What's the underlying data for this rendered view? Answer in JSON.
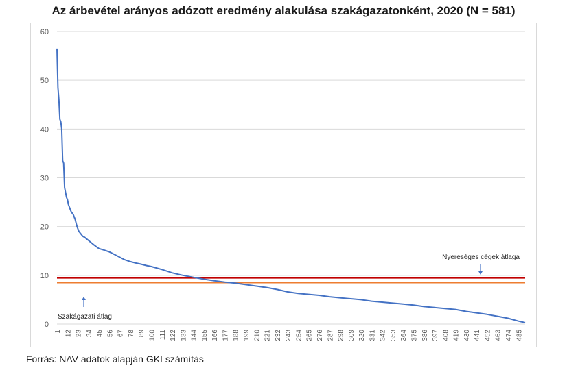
{
  "title": "Az árbevétel arányos adózott eredmény alakulása szakágazatonként, 2020 (N = 581)",
  "source": "Forrás: NAV adatok alapján GKI számítás",
  "colors": {
    "line": "#4472C4",
    "profitable": "#C00000",
    "sector": "#ED7D31",
    "grid": "#d9d9d9"
  },
  "chart_data": {
    "type": "line",
    "title": "Az árbevétel arányos adózott eredmény alakulása szakágazatonként, 2020 (N = 581)",
    "xlabel": "",
    "ylabel": "",
    "ylim": [
      0,
      60
    ],
    "yticks": [
      0,
      10,
      20,
      30,
      40,
      50,
      60
    ],
    "xlim": [
      1,
      492
    ],
    "xticks": [
      1,
      12,
      23,
      34,
      45,
      56,
      67,
      78,
      89,
      100,
      111,
      122,
      133,
      144,
      155,
      166,
      177,
      188,
      199,
      210,
      221,
      232,
      243,
      254,
      265,
      276,
      287,
      298,
      309,
      320,
      331,
      342,
      353,
      364,
      375,
      386,
      397,
      408,
      419,
      430,
      441,
      452,
      463,
      474,
      485
    ],
    "grid": "horizontal",
    "series": [
      {
        "x": [
          1,
          2,
          3,
          4,
          5,
          6,
          7,
          8,
          9,
          10,
          11,
          12,
          13,
          14,
          15,
          16,
          18,
          20,
          22,
          24,
          26,
          28,
          30,
          35,
          40,
          45,
          50,
          56,
          62,
          67,
          72,
          78,
          84,
          89,
          95,
          100,
          111,
          122,
          133,
          144,
          155,
          166,
          177,
          188,
          199,
          210,
          221,
          232,
          243,
          254,
          265,
          276,
          287,
          298,
          309,
          320,
          331,
          342,
          353,
          364,
          375,
          386,
          397,
          408,
          419,
          430,
          441,
          452,
          463,
          474,
          485,
          492
        ],
        "y": [
          56.5,
          48.5,
          46,
          42,
          41.5,
          40,
          33.5,
          33,
          28,
          27,
          26,
          25.5,
          24.5,
          24,
          23.5,
          23,
          22.5,
          21.5,
          20,
          19,
          18.5,
          18,
          17.8,
          17,
          16.2,
          15.5,
          15.2,
          14.8,
          14.2,
          13.7,
          13.2,
          12.8,
          12.5,
          12.3,
          12,
          11.8,
          11.2,
          10.5,
          10,
          9.6,
          9.2,
          8.9,
          8.6,
          8.4,
          8.1,
          7.8,
          7.5,
          7.1,
          6.6,
          6.3,
          6.1,
          5.9,
          5.6,
          5.4,
          5.2,
          5,
          4.7,
          4.5,
          4.3,
          4.1,
          3.9,
          3.6,
          3.4,
          3.2,
          3,
          2.6,
          2.3,
          2,
          1.6,
          1.2,
          0.6,
          0.3
        ]
      }
    ],
    "reference_lines": [
      {
        "label": "Nyereséges cégek átlaga",
        "value": 9.5
      },
      {
        "label": "Szakágazati átlag",
        "value": 8.5
      }
    ]
  }
}
